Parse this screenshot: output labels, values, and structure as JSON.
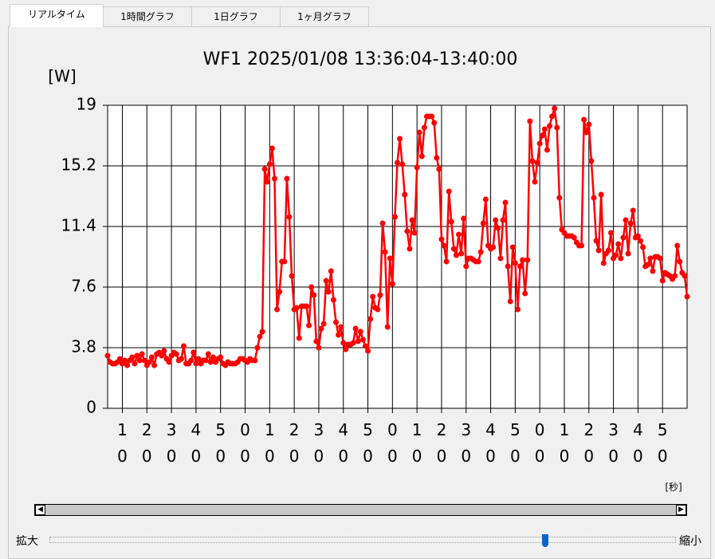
{
  "tabs": [
    "リアルタイム",
    "1時間グラフ",
    "1日グラフ",
    "1ヶ月グラフ"
  ],
  "zoom": {
    "in": "拡大",
    "out": "縮小"
  },
  "chart_data": {
    "type": "line",
    "title": "WF1 2025/01/08 13:36:04-13:40:00",
    "y_label": "[W]",
    "x_label": "[秒]",
    "color": "#ff0000",
    "grid": true,
    "xlim": [
      0,
      236
    ],
    "ylim": [
      0,
      19
    ],
    "yticks": [
      0,
      3.8,
      7.6,
      11.4,
      15.2,
      19
    ],
    "xticks": [
      {
        "value": 6,
        "label": "10"
      },
      {
        "value": 16,
        "label": "20"
      },
      {
        "value": 26,
        "label": "30"
      },
      {
        "value": 36,
        "label": "40"
      },
      {
        "value": 46,
        "label": "50"
      },
      {
        "value": 56,
        "label": "00"
      },
      {
        "value": 66,
        "label": "10"
      },
      {
        "value": 76,
        "label": "20"
      },
      {
        "value": 86,
        "label": "30"
      },
      {
        "value": 96,
        "label": "40"
      },
      {
        "value": 106,
        "label": "50"
      },
      {
        "value": 116,
        "label": "00"
      },
      {
        "value": 126,
        "label": "10"
      },
      {
        "value": 136,
        "label": "20"
      },
      {
        "value": 146,
        "label": "30"
      },
      {
        "value": 156,
        "label": "40"
      },
      {
        "value": 166,
        "label": "50"
      },
      {
        "value": 176,
        "label": "00"
      },
      {
        "value": 186,
        "label": "10"
      },
      {
        "value": 196,
        "label": "20"
      },
      {
        "value": 206,
        "label": "30"
      },
      {
        "value": 216,
        "label": "40"
      },
      {
        "value": 226,
        "label": "50"
      }
    ],
    "x": [
      0,
      1,
      2,
      3,
      4,
      5,
      6,
      7,
      8,
      9,
      10,
      11,
      12,
      13,
      14,
      15,
      16,
      17,
      18,
      19,
      20,
      21,
      22,
      23,
      24,
      25,
      26,
      27,
      28,
      29,
      30,
      31,
      32,
      33,
      34,
      35,
      36,
      37,
      38,
      39,
      40,
      41,
      42,
      43,
      44,
      45,
      46,
      47,
      48,
      49,
      50,
      51,
      52,
      53,
      54,
      55,
      56,
      57,
      58,
      59,
      60,
      61,
      62,
      63,
      64,
      65,
      66,
      67,
      68,
      69,
      70,
      71,
      72,
      73,
      74,
      75,
      76,
      77,
      78,
      79,
      80,
      81,
      82,
      83,
      84,
      85,
      86,
      87,
      88,
      89,
      90,
      91,
      92,
      93,
      94,
      95,
      96,
      97,
      98,
      99,
      100,
      101,
      102,
      103,
      104,
      105,
      106,
      107,
      108,
      109,
      110,
      111,
      112,
      113,
      114,
      115,
      116,
      117,
      118,
      119,
      120,
      121,
      122,
      123,
      124,
      125,
      126,
      127,
      128,
      129,
      130,
      131,
      132,
      133,
      134,
      135,
      136,
      137,
      138,
      139,
      140,
      141,
      142,
      143,
      144,
      145,
      146,
      147,
      148,
      149,
      150,
      151,
      152,
      153,
      154,
      155,
      156,
      157,
      158,
      159,
      160,
      161,
      162,
      163,
      164,
      165,
      166,
      167,
      168,
      169,
      170,
      171,
      172,
      173,
      174,
      175,
      176,
      177,
      178,
      179,
      180,
      181,
      182,
      183,
      184,
      185,
      186,
      187,
      188,
      189,
      190,
      191,
      192,
      193,
      194,
      195,
      196,
      197,
      198,
      199,
      200,
      201,
      202,
      203,
      204,
      205,
      206,
      207,
      208,
      209,
      210,
      211,
      212,
      213,
      214,
      215,
      216,
      217,
      218,
      219,
      220,
      221,
      222,
      223,
      224,
      225,
      226,
      227,
      228,
      229,
      230,
      231,
      232,
      233,
      234,
      235,
      236
    ],
    "values": [
      3.3,
      2.9,
      2.8,
      2.8,
      2.9,
      3.1,
      2.8,
      3,
      2.7,
      3,
      3.2,
      2.8,
      3.3,
      3,
      3.4,
      3,
      2.7,
      2.9,
      3.2,
      2.7,
      3.4,
      3.5,
      3.3,
      3.6,
      3.1,
      2.9,
      3.3,
      3.5,
      3.4,
      3,
      3.1,
      3.9,
      2.8,
      2.8,
      3,
      3.5,
      2.8,
      3.1,
      2.8,
      3,
      3,
      3.4,
      2.9,
      3.2,
      2.9,
      3.1,
      3.2,
      2.8,
      2.7,
      2.9,
      2.8,
      2.8,
      2.8,
      2.9,
      3.1,
      3.1,
      3,
      2.9,
      3.1,
      3,
      3,
      3.8,
      4.5,
      4.8,
      15,
      14.2,
      15.3,
      16.3,
      14.4,
      6.2,
      7.3,
      9.2,
      9.2,
      14.4,
      12,
      8.3,
      6.2,
      6.3,
      4.4,
      6.4,
      6.4,
      6.4,
      5.2,
      7.6,
      7.1,
      4.2,
      3.8,
      5,
      5.3,
      8,
      7.3,
      8.6,
      6.8,
      5.4,
      4.6,
      5.1,
      4.1,
      3.7,
      4,
      4,
      4.1,
      5,
      4.2,
      4.8,
      4.3,
      3.9,
      3.6,
      5.6,
      7,
      6.3,
      6.2,
      7.1,
      11.6,
      9.8,
      5.1,
      9.4,
      7.8,
      12,
      15.4,
      16.9,
      15.3,
      13.4,
      11.1,
      10,
      11.8,
      11,
      15.1,
      17.3,
      15.8,
      17.6,
      18.3,
      18.3,
      18.3,
      17.9,
      15.7,
      15,
      10.6,
      10.2,
      9.2,
      13.6,
      11.7,
      10,
      9.6,
      10.9,
      9.7,
      11.9,
      8.9,
      9.4,
      9.4,
      9.3,
      9.2,
      9.2,
      9.8,
      11.6,
      13.1,
      10.2,
      10,
      10.1,
      11.8,
      11.3,
      9.4,
      11.8,
      12.9,
      8.9,
      6.7,
      10.1,
      9.1,
      6.2,
      8.9,
      9.3,
      7.2,
      9.3,
      18,
      15.5,
      14.2,
      15.4,
      16.6,
      17.1,
      17.5,
      16.2,
      17.7,
      18.3,
      18.8,
      17.6,
      13.2,
      11.2,
      11,
      10.8,
      10.8,
      10.8,
      10.7,
      10.4,
      10.2,
      10.2,
      18.1,
      17.3,
      17.8,
      15.5,
      13.2,
      10.5,
      9.9,
      13.4,
      9.1,
      9.7,
      9.9,
      11,
      9.4,
      9.6,
      10.3,
      9.4,
      10.7,
      11.8,
      9.7,
      11.6,
      12.4,
      10.7,
      10.8,
      10.5,
      10.1,
      8.9,
      9,
      9.4,
      8.6,
      9.5,
      9.5,
      9.4,
      8,
      8.5,
      8.4,
      8.3,
      8.1,
      8.3,
      10.2,
      9.2,
      8.5,
      8.3,
      7.0
    ]
  }
}
